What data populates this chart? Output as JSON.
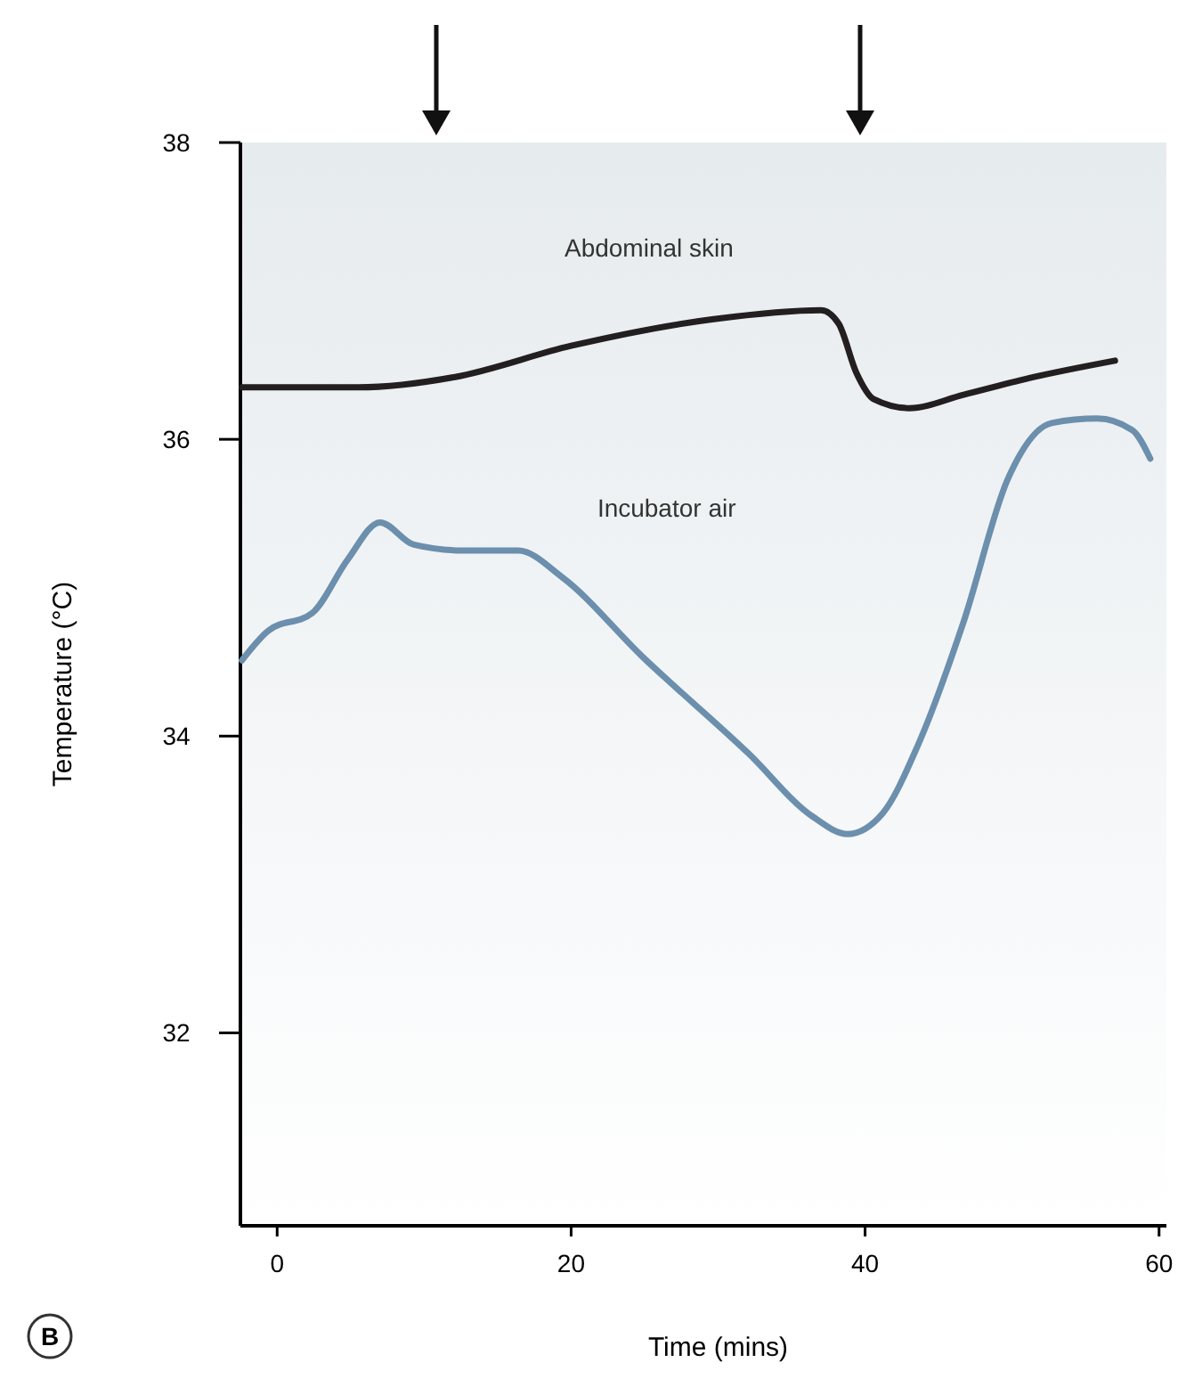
{
  "chart_data": {
    "type": "line",
    "xlabel": "Time (mins)",
    "ylabel": "Temperature (°C)",
    "xlim": [
      -2.5,
      60.5
    ],
    "ylim": [
      30.7,
      38
    ],
    "xticks": [
      0,
      20,
      40,
      60
    ],
    "yticks": [
      32,
      34,
      36,
      38
    ],
    "grid": false,
    "legend": false,
    "marker": "none",
    "line_style": "solid",
    "annotations": [
      "B"
    ],
    "series": [
      {
        "name": "Abdominal skin",
        "color": "#231f20",
        "x": [
          -2.4,
          5.5,
          12.1,
          20,
          29.7,
          37,
          38.2,
          39.4,
          40.6,
          43,
          46.7,
          51.5,
          57
        ],
        "values": [
          36.35,
          36.35,
          36.42,
          36.63,
          36.81,
          36.87,
          36.78,
          36.45,
          36.27,
          36.21,
          36.3,
          36.42,
          36.53
        ]
      },
      {
        "name": "Incubator air",
        "color": "#6b8fad",
        "x": [
          -2.4,
          -0.6,
          2.4,
          4.8,
          7,
          9.3,
          12.7,
          16.4,
          19.4,
          24.8,
          32.1,
          36.4,
          38.8,
          41.2,
          43.6,
          46.7,
          49.7,
          52.7,
          55.8,
          58.2,
          59.4
        ],
        "values": [
          34.51,
          34.71,
          34.83,
          35.19,
          35.44,
          35.29,
          35.25,
          35.25,
          35.07,
          34.54,
          33.88,
          33.46,
          33.34,
          33.48,
          33.94,
          34.77,
          35.73,
          36.11,
          36.14,
          36.06,
          35.87
        ]
      }
    ]
  }
}
